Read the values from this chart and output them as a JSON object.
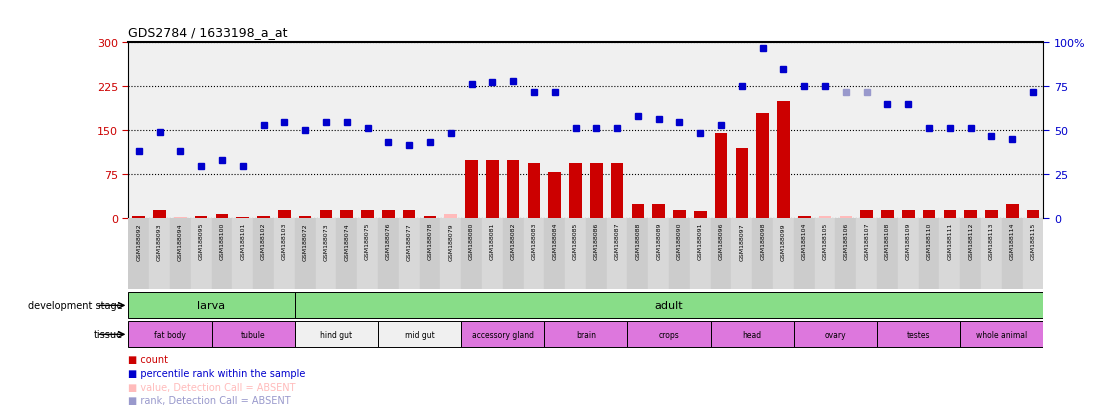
{
  "title": "GDS2784 / 1633198_a_at",
  "samples": [
    "GSM188092",
    "GSM188093",
    "GSM188094",
    "GSM188095",
    "GSM188100",
    "GSM188101",
    "GSM188102",
    "GSM188103",
    "GSM188072",
    "GSM188073",
    "GSM188074",
    "GSM188075",
    "GSM188076",
    "GSM188077",
    "GSM188078",
    "GSM188079",
    "GSM188080",
    "GSM188081",
    "GSM188082",
    "GSM188083",
    "GSM188084",
    "GSM188085",
    "GSM188086",
    "GSM188087",
    "GSM188088",
    "GSM188089",
    "GSM188090",
    "GSM188091",
    "GSM188096",
    "GSM188097",
    "GSM188098",
    "GSM188099",
    "GSM188104",
    "GSM188105",
    "GSM188106",
    "GSM188107",
    "GSM188108",
    "GSM188109",
    "GSM188110",
    "GSM188111",
    "GSM188112",
    "GSM188113",
    "GSM188114",
    "GSM188115"
  ],
  "count_values": [
    4,
    14,
    3,
    4,
    8,
    3,
    4,
    15,
    4,
    14,
    14,
    14,
    14,
    14,
    4,
    7,
    100,
    100,
    100,
    95,
    80,
    95,
    95,
    95,
    25,
    25,
    15,
    12,
    145,
    120,
    180,
    200,
    4,
    4,
    4,
    15,
    15,
    14,
    14,
    14,
    15,
    14,
    25,
    14
  ],
  "count_absent": [
    false,
    false,
    true,
    false,
    false,
    false,
    false,
    false,
    false,
    false,
    false,
    false,
    false,
    false,
    false,
    true,
    false,
    false,
    false,
    false,
    false,
    false,
    false,
    false,
    false,
    false,
    false,
    false,
    false,
    false,
    false,
    false,
    false,
    true,
    true,
    false,
    false,
    false,
    false,
    false,
    false,
    false,
    false,
    false
  ],
  "rank_values": [
    115,
    147,
    115,
    90,
    100,
    90,
    160,
    165,
    150,
    165,
    165,
    155,
    130,
    125,
    130,
    145,
    230,
    232,
    235,
    215,
    215,
    155,
    155,
    155,
    175,
    170,
    165,
    145,
    160,
    225,
    290,
    255,
    225,
    225,
    215,
    215,
    195,
    195,
    155,
    155,
    155,
    140,
    135,
    215
  ],
  "rank_absent": [
    false,
    false,
    false,
    false,
    false,
    false,
    false,
    false,
    false,
    false,
    false,
    false,
    false,
    false,
    false,
    false,
    false,
    false,
    false,
    false,
    false,
    false,
    false,
    false,
    false,
    false,
    false,
    false,
    false,
    false,
    false,
    false,
    false,
    false,
    true,
    true,
    false,
    false,
    false,
    false,
    false,
    false,
    false,
    false
  ],
  "ylim_left": [
    0,
    300
  ],
  "ylim_right": [
    0,
    100
  ],
  "yticks_left": [
    0,
    75,
    150,
    225,
    300
  ],
  "yticks_right": [
    0,
    25,
    50,
    75,
    100
  ],
  "development_stages": [
    {
      "label": "larva",
      "start": 0,
      "end": 8
    },
    {
      "label": "adult",
      "start": 8,
      "end": 44
    }
  ],
  "tissue_groups": [
    {
      "label": "fat body",
      "start": 0,
      "end": 4,
      "color": "#dd77dd"
    },
    {
      "label": "tubule",
      "start": 4,
      "end": 8,
      "color": "#dd77dd"
    },
    {
      "label": "hind gut",
      "start": 8,
      "end": 12,
      "color": "#f0f0f0"
    },
    {
      "label": "mid gut",
      "start": 12,
      "end": 16,
      "color": "#f0f0f0"
    },
    {
      "label": "accessory gland",
      "start": 16,
      "end": 20,
      "color": "#dd77dd"
    },
    {
      "label": "brain",
      "start": 20,
      "end": 24,
      "color": "#dd77dd"
    },
    {
      "label": "crops",
      "start": 24,
      "end": 28,
      "color": "#dd77dd"
    },
    {
      "label": "head",
      "start": 28,
      "end": 32,
      "color": "#dd77dd"
    },
    {
      "label": "ovary",
      "start": 32,
      "end": 36,
      "color": "#dd77dd"
    },
    {
      "label": "testes",
      "start": 36,
      "end": 40,
      "color": "#dd77dd"
    },
    {
      "label": "whole animal",
      "start": 40,
      "end": 44,
      "color": "#dd77dd"
    }
  ],
  "bar_color": "#cc0000",
  "bar_absent_color": "#ffbbbb",
  "dot_color": "#0000cc",
  "dot_absent_color": "#9999cc",
  "stage_color": "#88dd88",
  "tick_left_color": "#cc0000",
  "tick_right_color": "#0000cc",
  "plot_bg": "#f0f0f0"
}
